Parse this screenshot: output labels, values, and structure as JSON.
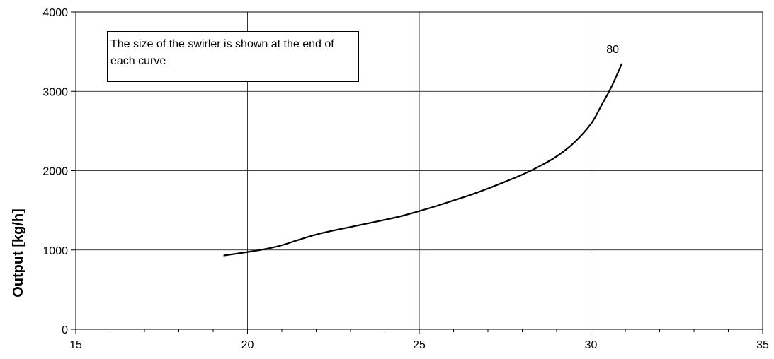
{
  "chart_data": {
    "type": "line",
    "title": "",
    "xlabel": "",
    "ylabel": "Output [kg/h]",
    "xlim": [
      15,
      35
    ],
    "ylim": [
      0,
      4000
    ],
    "x_ticks": [
      15,
      20,
      25,
      30,
      35
    ],
    "y_ticks": [
      0,
      1000,
      2000,
      3000,
      4000
    ],
    "grid": true,
    "annotation": "The size of the swirler is shown at the end of each curve",
    "series": [
      {
        "name": "80",
        "color": "#000000",
        "x": [
          19.3,
          20.0,
          20.5,
          21.0,
          21.5,
          22.0,
          22.5,
          23.0,
          23.5,
          24.0,
          24.5,
          25.0,
          25.5,
          26.0,
          26.5,
          27.0,
          27.5,
          28.0,
          28.5,
          29.0,
          29.5,
          30.0,
          30.3,
          30.6,
          30.9
        ],
        "y": [
          930,
          975,
          1010,
          1060,
          1130,
          1195,
          1245,
          1290,
          1335,
          1380,
          1430,
          1490,
          1555,
          1625,
          1695,
          1775,
          1860,
          1950,
          2055,
          2180,
          2350,
          2590,
          2820,
          3060,
          3350
        ]
      }
    ]
  }
}
